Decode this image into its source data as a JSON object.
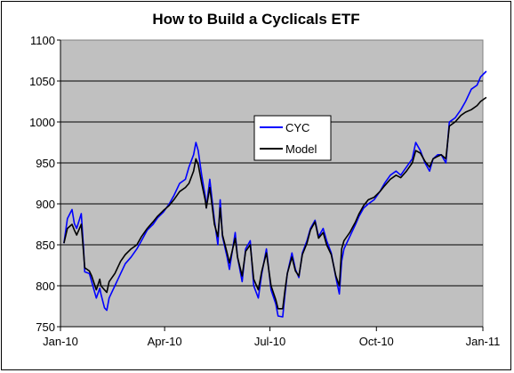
{
  "chart_data": {
    "type": "line",
    "title": "How to Build a Cyclicals ETF",
    "xlabel": "",
    "ylabel": "",
    "ylim": [
      750,
      1100
    ],
    "y_ticks": [
      "750",
      "800",
      "850",
      "900",
      "950",
      "1000",
      "1050",
      "1100"
    ],
    "x_ticks": [
      "Jan-10",
      "Apr-10",
      "Jul-10",
      "Oct-10",
      "Jan-11"
    ],
    "grid": true,
    "legend_position": "center",
    "colors": {
      "plot_bg": "#c0c0c0",
      "CYC": "#0000ff",
      "Model": "#000000"
    },
    "series": [
      {
        "name": "CYC",
        "points": [
          [
            "2010-01-04",
            852
          ],
          [
            "2010-01-07",
            882
          ],
          [
            "2010-01-11",
            893
          ],
          [
            "2010-01-13",
            876
          ],
          [
            "2010-01-15",
            870
          ],
          [
            "2010-01-19",
            888
          ],
          [
            "2010-01-21",
            845
          ],
          [
            "2010-01-22",
            817
          ],
          [
            "2010-01-26",
            815
          ],
          [
            "2010-01-28",
            805
          ],
          [
            "2010-02-01",
            785
          ],
          [
            "2010-02-04",
            797
          ],
          [
            "2010-02-05",
            790
          ],
          [
            "2010-02-08",
            773
          ],
          [
            "2010-02-10",
            770
          ],
          [
            "2010-02-12",
            785
          ],
          [
            "2010-02-17",
            800
          ],
          [
            "2010-02-22",
            815
          ],
          [
            "2010-02-26",
            827
          ],
          [
            "2010-03-03",
            835
          ],
          [
            "2010-03-08",
            845
          ],
          [
            "2010-03-12",
            855
          ],
          [
            "2010-03-17",
            868
          ],
          [
            "2010-03-22",
            875
          ],
          [
            "2010-03-26",
            883
          ],
          [
            "2010-03-31",
            890
          ],
          [
            "2010-04-05",
            900
          ],
          [
            "2010-04-09",
            910
          ],
          [
            "2010-04-14",
            925
          ],
          [
            "2010-04-19",
            930
          ],
          [
            "2010-04-22",
            945
          ],
          [
            "2010-04-26",
            960
          ],
          [
            "2010-04-28",
            975
          ],
          [
            "2010-04-30",
            965
          ],
          [
            "2010-05-03",
            935
          ],
          [
            "2010-05-06",
            910
          ],
          [
            "2010-05-07",
            895
          ],
          [
            "2010-05-10",
            930
          ],
          [
            "2010-05-12",
            905
          ],
          [
            "2010-05-14",
            880
          ],
          [
            "2010-05-17",
            850
          ],
          [
            "2010-05-19",
            905
          ],
          [
            "2010-05-21",
            860
          ],
          [
            "2010-05-25",
            835
          ],
          [
            "2010-05-27",
            820
          ],
          [
            "2010-06-01",
            865
          ],
          [
            "2010-06-03",
            835
          ],
          [
            "2010-06-07",
            805
          ],
          [
            "2010-06-10",
            845
          ],
          [
            "2010-06-14",
            855
          ],
          [
            "2010-06-17",
            800
          ],
          [
            "2010-06-21",
            785
          ],
          [
            "2010-06-24",
            815
          ],
          [
            "2010-06-28",
            845
          ],
          [
            "2010-06-30",
            820
          ],
          [
            "2010-07-02",
            795
          ],
          [
            "2010-07-06",
            778
          ],
          [
            "2010-07-08",
            763
          ],
          [
            "2010-07-12",
            762
          ],
          [
            "2010-07-14",
            790
          ],
          [
            "2010-07-16",
            815
          ],
          [
            "2010-07-20",
            840
          ],
          [
            "2010-07-23",
            820
          ],
          [
            "2010-07-26",
            810
          ],
          [
            "2010-07-29",
            840
          ],
          [
            "2010-08-02",
            855
          ],
          [
            "2010-08-05",
            870
          ],
          [
            "2010-08-09",
            880
          ],
          [
            "2010-08-12",
            860
          ],
          [
            "2010-08-16",
            870
          ],
          [
            "2010-08-19",
            855
          ],
          [
            "2010-08-23",
            840
          ],
          [
            "2010-08-25",
            825
          ],
          [
            "2010-08-27",
            810
          ],
          [
            "2010-08-30",
            790
          ],
          [
            "2010-09-01",
            830
          ],
          [
            "2010-09-03",
            845
          ],
          [
            "2010-09-08",
            860
          ],
          [
            "2010-09-13",
            875
          ],
          [
            "2010-09-16",
            885
          ],
          [
            "2010-09-20",
            895
          ],
          [
            "2010-09-24",
            900
          ],
          [
            "2010-09-29",
            905
          ],
          [
            "2010-10-04",
            915
          ],
          [
            "2010-10-08",
            925
          ],
          [
            "2010-10-13",
            935
          ],
          [
            "2010-10-18",
            940
          ],
          [
            "2010-10-22",
            935
          ],
          [
            "2010-10-27",
            945
          ],
          [
            "2010-11-01",
            955
          ],
          [
            "2010-11-04",
            975
          ],
          [
            "2010-11-08",
            965
          ],
          [
            "2010-11-12",
            950
          ],
          [
            "2010-11-16",
            940
          ],
          [
            "2010-11-19",
            955
          ],
          [
            "2010-11-23",
            960
          ],
          [
            "2010-11-26",
            960
          ],
          [
            "2010-11-30",
            950
          ],
          [
            "2010-12-03",
            1000
          ],
          [
            "2010-12-08",
            1005
          ],
          [
            "2010-12-13",
            1015
          ],
          [
            "2010-12-17",
            1025
          ],
          [
            "2010-12-22",
            1040
          ],
          [
            "2010-12-27",
            1045
          ],
          [
            "2010-12-30",
            1055
          ],
          [
            "2011-01-04",
            1062
          ]
        ]
      },
      {
        "name": "Model",
        "points": [
          [
            "2010-01-04",
            852
          ],
          [
            "2010-01-07",
            870
          ],
          [
            "2010-01-11",
            875
          ],
          [
            "2010-01-13",
            868
          ],
          [
            "2010-01-15",
            862
          ],
          [
            "2010-01-19",
            875
          ],
          [
            "2010-01-21",
            840
          ],
          [
            "2010-01-22",
            822
          ],
          [
            "2010-01-26",
            818
          ],
          [
            "2010-01-28",
            812
          ],
          [
            "2010-02-01",
            795
          ],
          [
            "2010-02-04",
            808
          ],
          [
            "2010-02-05",
            800
          ],
          [
            "2010-02-08",
            795
          ],
          [
            "2010-02-10",
            792
          ],
          [
            "2010-02-12",
            805
          ],
          [
            "2010-02-17",
            815
          ],
          [
            "2010-02-22",
            830
          ],
          [
            "2010-02-26",
            838
          ],
          [
            "2010-03-03",
            845
          ],
          [
            "2010-03-08",
            850
          ],
          [
            "2010-03-12",
            860
          ],
          [
            "2010-03-17",
            870
          ],
          [
            "2010-03-22",
            878
          ],
          [
            "2010-03-26",
            885
          ],
          [
            "2010-03-31",
            892
          ],
          [
            "2010-04-05",
            898
          ],
          [
            "2010-04-09",
            905
          ],
          [
            "2010-04-14",
            915
          ],
          [
            "2010-04-19",
            920
          ],
          [
            "2010-04-22",
            925
          ],
          [
            "2010-04-26",
            940
          ],
          [
            "2010-04-28",
            955
          ],
          [
            "2010-04-30",
            948
          ],
          [
            "2010-05-03",
            925
          ],
          [
            "2010-05-06",
            905
          ],
          [
            "2010-05-07",
            895
          ],
          [
            "2010-05-10",
            920
          ],
          [
            "2010-05-12",
            898
          ],
          [
            "2010-05-14",
            875
          ],
          [
            "2010-05-17",
            860
          ],
          [
            "2010-05-19",
            895
          ],
          [
            "2010-05-21",
            862
          ],
          [
            "2010-05-25",
            840
          ],
          [
            "2010-05-27",
            828
          ],
          [
            "2010-06-01",
            858
          ],
          [
            "2010-06-03",
            835
          ],
          [
            "2010-06-07",
            812
          ],
          [
            "2010-06-10",
            842
          ],
          [
            "2010-06-14",
            850
          ],
          [
            "2010-06-17",
            808
          ],
          [
            "2010-06-21",
            795
          ],
          [
            "2010-06-24",
            818
          ],
          [
            "2010-06-28",
            840
          ],
          [
            "2010-06-30",
            820
          ],
          [
            "2010-07-02",
            800
          ],
          [
            "2010-07-06",
            783
          ],
          [
            "2010-07-08",
            772
          ],
          [
            "2010-07-12",
            772
          ],
          [
            "2010-07-14",
            795
          ],
          [
            "2010-07-16",
            815
          ],
          [
            "2010-07-20",
            835
          ],
          [
            "2010-07-23",
            818
          ],
          [
            "2010-07-26",
            812
          ],
          [
            "2010-07-29",
            838
          ],
          [
            "2010-08-02",
            852
          ],
          [
            "2010-08-05",
            868
          ],
          [
            "2010-08-09",
            878
          ],
          [
            "2010-08-12",
            858
          ],
          [
            "2010-08-16",
            865
          ],
          [
            "2010-08-19",
            850
          ],
          [
            "2010-08-23",
            838
          ],
          [
            "2010-08-25",
            825
          ],
          [
            "2010-08-27",
            812
          ],
          [
            "2010-08-30",
            800
          ],
          [
            "2010-09-01",
            845
          ],
          [
            "2010-09-03",
            855
          ],
          [
            "2010-09-08",
            865
          ],
          [
            "2010-09-13",
            878
          ],
          [
            "2010-09-16",
            888
          ],
          [
            "2010-09-20",
            898
          ],
          [
            "2010-09-24",
            905
          ],
          [
            "2010-09-29",
            908
          ],
          [
            "2010-10-04",
            915
          ],
          [
            "2010-10-08",
            922
          ],
          [
            "2010-10-13",
            930
          ],
          [
            "2010-10-18",
            935
          ],
          [
            "2010-10-22",
            932
          ],
          [
            "2010-10-27",
            940
          ],
          [
            "2010-11-01",
            950
          ],
          [
            "2010-11-04",
            965
          ],
          [
            "2010-11-08",
            962
          ],
          [
            "2010-11-12",
            952
          ],
          [
            "2010-11-16",
            945
          ],
          [
            "2010-11-19",
            955
          ],
          [
            "2010-11-23",
            958
          ],
          [
            "2010-11-26",
            960
          ],
          [
            "2010-11-30",
            955
          ],
          [
            "2010-12-03",
            995
          ],
          [
            "2010-12-08",
            1000
          ],
          [
            "2010-12-13",
            1008
          ],
          [
            "2010-12-17",
            1012
          ],
          [
            "2010-12-22",
            1015
          ],
          [
            "2010-12-27",
            1020
          ],
          [
            "2010-12-30",
            1025
          ],
          [
            "2011-01-04",
            1030
          ]
        ]
      }
    ]
  }
}
